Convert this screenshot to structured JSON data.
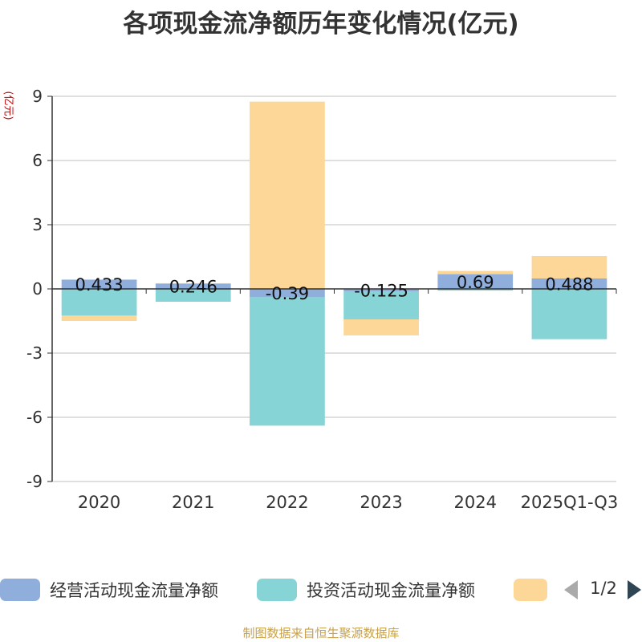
{
  "title": "各项现金流净额历年变化情况(亿元)",
  "unit_label": "(亿元)",
  "source": "制图数据来自恒生聚源数据库",
  "legend": {
    "items": [
      {
        "label": "经营活动现金流量净额",
        "color": "#8faedb"
      },
      {
        "label": "投资活动现金流量净额",
        "color": "#87d4d6"
      },
      {
        "label": "",
        "color": "#fdd797"
      }
    ],
    "page_text": "1/2"
  },
  "chart_data": {
    "type": "bar",
    "stacked": true,
    "categories": [
      "2020",
      "2021",
      "2022",
      "2023",
      "2024",
      "2025Q1-Q3"
    ],
    "ylim": [
      -9,
      9
    ],
    "yticks": [
      -9,
      -6,
      -3,
      0,
      3,
      6,
      9
    ],
    "grid": true,
    "legend_position": "bottom",
    "series": [
      {
        "name": "经营活动现金流量净额",
        "color": "#8faedb",
        "values": [
          0.433,
          0.246,
          -0.39,
          -0.125,
          0.69,
          0.488
        ]
      },
      {
        "name": "投资活动现金流量净额",
        "color": "#87d4d6",
        "values": [
          -1.25,
          -0.6,
          -6.0,
          -1.3,
          -0.08,
          -2.35
        ]
      },
      {
        "color": "#fdd797",
        "values": [
          -0.25,
          0.02,
          8.75,
          -0.75,
          0.15,
          1.05
        ]
      }
    ],
    "data_labels": [
      "0.433",
      "0.246",
      "-0.39",
      "-0.125",
      "0.69",
      "0.488"
    ]
  }
}
